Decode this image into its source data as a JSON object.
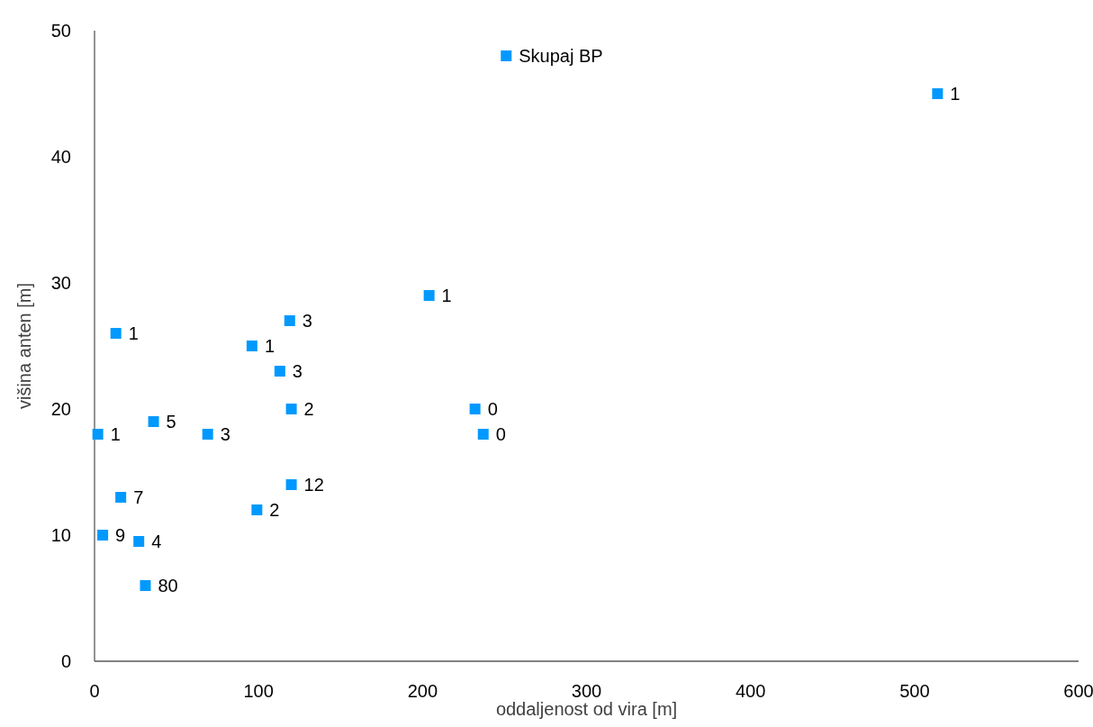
{
  "chart_data": {
    "type": "scatter",
    "xlabel": "oddaljenost od vira [m]",
    "ylabel": "višina anten [m]",
    "xlim": [
      0,
      600
    ],
    "xticks": [
      0,
      100,
      200,
      300,
      400,
      500,
      600
    ],
    "ylim": [
      0,
      50
    ],
    "yticks": [
      0,
      10,
      20,
      30,
      40,
      50
    ],
    "grid": false,
    "marker": "square",
    "series": [
      {
        "color": "#0099ff",
        "x": [
          251,
          514,
          204,
          13,
          119,
          96,
          113,
          120,
          232,
          237,
          2,
          36,
          69,
          16,
          120,
          99,
          5,
          27,
          31
        ],
        "values": [
          48,
          45,
          29,
          26,
          27,
          25,
          23,
          20,
          20,
          18,
          18,
          19,
          18,
          13,
          14,
          12,
          10,
          9.5,
          6
        ]
      }
    ],
    "annotations": [
      {
        "text": "Skupaj BP",
        "x": 251,
        "y": 48
      },
      {
        "text": "1",
        "x": 514,
        "y": 45
      },
      {
        "text": "1",
        "x": 204,
        "y": 29
      },
      {
        "text": "1",
        "x": 13,
        "y": 26
      },
      {
        "text": "3",
        "x": 119,
        "y": 27
      },
      {
        "text": "1",
        "x": 96,
        "y": 25
      },
      {
        "text": "3",
        "x": 113,
        "y": 23
      },
      {
        "text": "2",
        "x": 120,
        "y": 20
      },
      {
        "text": "0",
        "x": 232,
        "y": 20
      },
      {
        "text": "0",
        "x": 237,
        "y": 18
      },
      {
        "text": "1",
        "x": 2,
        "y": 18
      },
      {
        "text": "5",
        "x": 36,
        "y": 19
      },
      {
        "text": "3",
        "x": 69,
        "y": 18
      },
      {
        "text": "7",
        "x": 16,
        "y": 13
      },
      {
        "text": "12",
        "x": 120,
        "y": 14
      },
      {
        "text": "2",
        "x": 99,
        "y": 12
      },
      {
        "text": "9",
        "x": 5,
        "y": 10
      },
      {
        "text": "4",
        "x": 27,
        "y": 9.5
      },
      {
        "text": "80",
        "x": 31,
        "y": 6
      }
    ]
  }
}
